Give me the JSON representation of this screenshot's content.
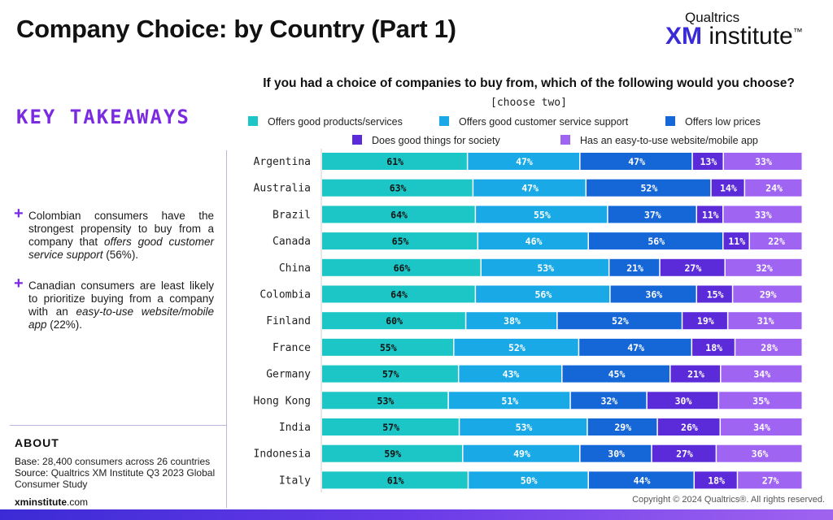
{
  "header": {
    "title": "Company Choice: by Country (Part 1)",
    "brand_top": "Qualtrics",
    "brand_xm": "XM",
    "brand_institute": "institute",
    "brand_tm": "™"
  },
  "takeaways": {
    "title": "KEY TAKEAWAYS",
    "plus": "+",
    "item1_before": "Colombian consumers have the strongest propensity to buy from a company that ",
    "item1_italic": "offers good customer service support",
    "item1_after": " (56%).",
    "item2_before": "Canadian consumers are least likely to prioritize buying from a company with an ",
    "item2_italic": "easy-to-use website/mobile app",
    "item2_after": " (22%)."
  },
  "about": {
    "title": "ABOUT",
    "base_label": "Base:",
    "base_text": " 28,400 consumers across 26 countries",
    "source_label": "Source:",
    "source_text": " Qualtrics XM Institute Q3 2023 Global Consumer Study",
    "site_bold": "xminstitute",
    "site_rest": ".com"
  },
  "footer": {
    "copyright": "Copyright © 2024 Qualtrics®. All rights reserved."
  },
  "colors": {
    "good_products": "#1cc6c6",
    "customer_service": "#19a9e6",
    "low_prices": "#1566d6",
    "good_society": "#5b2bd9",
    "easy_website": "#a064f2",
    "accent": "#7a2be2"
  },
  "chart_data": {
    "type": "bar",
    "orientation": "horizontal",
    "stacked": true,
    "title": "If you had a choice of companies to buy from, which of the following would you choose?",
    "subtitle": "[choose two]",
    "categories": [
      "Argentina",
      "Australia",
      "Brazil",
      "Canada",
      "China",
      "Colombia",
      "Finland",
      "France",
      "Germany",
      "Hong Kong",
      "India",
      "Indonesia",
      "Italy"
    ],
    "series": [
      {
        "name": "Offers good products/services",
        "color": "#1cc6c6",
        "values": [
          61,
          63,
          64,
          65,
          66,
          64,
          60,
          55,
          57,
          53,
          57,
          59,
          61
        ]
      },
      {
        "name": "Offers good customer service support",
        "color": "#19a9e6",
        "values": [
          47,
          47,
          55,
          46,
          53,
          56,
          38,
          52,
          43,
          51,
          53,
          49,
          50
        ]
      },
      {
        "name": "Offers low prices",
        "color": "#1566d6",
        "values": [
          47,
          52,
          37,
          56,
          21,
          36,
          52,
          47,
          45,
          32,
          29,
          30,
          44
        ]
      },
      {
        "name": "Does good things for society",
        "color": "#5b2bd9",
        "values": [
          13,
          14,
          11,
          11,
          27,
          15,
          19,
          18,
          21,
          30,
          26,
          27,
          18
        ]
      },
      {
        "name": "Has an easy-to-use website/mobile app",
        "color": "#a064f2",
        "values": [
          33,
          24,
          33,
          22,
          32,
          29,
          31,
          28,
          34,
          35,
          34,
          36,
          27
        ]
      }
    ],
    "value_suffix": "%",
    "legend_position": "top"
  }
}
